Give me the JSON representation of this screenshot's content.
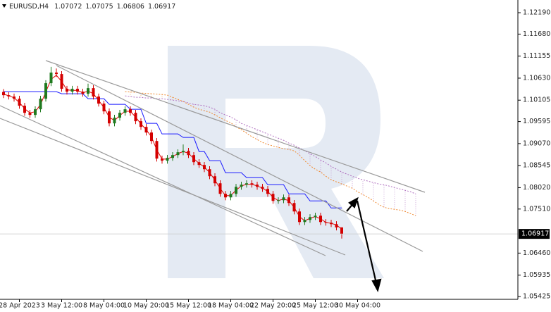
{
  "chart_data": {
    "type": "candlestick",
    "symbol": "EURUSD,H4",
    "up_color": "#1f7a1f",
    "down_color": "#d40000",
    "categories": [
      null,
      null,
      null,
      "28 Apr 2023",
      null,
      null,
      null,
      null,
      null,
      null,
      null,
      "3 May 12:00",
      null,
      null,
      null,
      null,
      null,
      null,
      null,
      "8 May 04:00",
      null,
      null,
      null,
      null,
      null,
      null,
      null,
      "10 May 20:00",
      null,
      null,
      null,
      null,
      null,
      null,
      null,
      "15 May 12:00",
      null,
      null,
      null,
      null,
      null,
      null,
      null,
      "18 May 04:00",
      null,
      null,
      null,
      null,
      null,
      null,
      null,
      "22 May 20:00",
      null,
      null,
      null,
      null,
      null,
      null,
      null,
      "25 May 12:00",
      null,
      null,
      null,
      null,
      null,
      null,
      null,
      "30 May 04:00",
      null,
      null,
      null,
      null,
      null,
      null,
      null,
      null,
      null,
      null,
      null
    ],
    "open": [
      1.103,
      1.10224,
      1.10191,
      1.1014,
      1.09972,
      1.09804,
      1.09754,
      1.09888,
      1.1014,
      1.1051,
      1.10762,
      1.10728,
      1.10376,
      1.10308,
      1.10376,
      1.10308,
      1.10258,
      1.10392,
      1.10191,
      1.10023,
      1.09838,
      1.09552,
      1.09687,
      1.09804,
      1.09888,
      1.09804,
      1.09603,
      1.09468,
      1.09334,
      1.09132,
      1.08712,
      1.08662,
      1.08729,
      1.08796,
      1.08864,
      1.08897,
      1.08796,
      1.08628,
      1.08561,
      1.0846,
      1.08292,
      1.08124,
      1.07872,
      1.07788,
      1.07872,
      1.0804,
      1.08091,
      1.08124,
      1.08091,
      1.0804,
      1.0799,
      1.07872,
      1.07704,
      1.0772,
      1.07788,
      1.07654,
      1.07452,
      1.072,
      1.07251,
      1.07318,
      1.07352,
      1.072,
      1.07184,
      1.0715,
      1.07072,
      null,
      null,
      null,
      null,
      null,
      null,
      null,
      null,
      null,
      null,
      null,
      null,
      null,
      null
    ],
    "high": [
      1.1037,
      1.10294,
      1.10261,
      1.1021,
      1.10042,
      1.09874,
      1.09958,
      1.1021,
      1.1058,
      1.109,
      1.1086,
      1.10798,
      1.10446,
      1.10446,
      1.10446,
      1.10378,
      1.105,
      1.10462,
      1.10261,
      1.10093,
      1.09908,
      1.09757,
      1.09874,
      1.09958,
      1.09958,
      1.09874,
      1.09673,
      1.09538,
      1.09404,
      1.09202,
      1.08782,
      1.08799,
      1.08866,
      1.08934,
      1.0905,
      1.08967,
      1.08866,
      1.08698,
      1.08631,
      1.0853,
      1.08362,
      1.08194,
      1.07942,
      1.07942,
      1.0811,
      1.08161,
      1.08194,
      1.08194,
      1.08161,
      1.0811,
      1.0806,
      1.07942,
      1.0779,
      1.07858,
      1.07858,
      1.07724,
      1.07522,
      1.07321,
      1.07388,
      1.07422,
      1.07422,
      1.0727,
      1.07254,
      1.0722,
      1.07075,
      null,
      null,
      null,
      null,
      null,
      null,
      null,
      null,
      null,
      null,
      null,
      null,
      null,
      null
    ],
    "low": [
      1.10154,
      1.10121,
      1.1007,
      1.09902,
      1.09734,
      1.09684,
      1.09684,
      1.09818,
      1.1007,
      1.1044,
      1.10658,
      1.10306,
      1.10238,
      1.10238,
      1.10238,
      1.10188,
      1.10188,
      1.10121,
      1.09953,
      1.09768,
      1.09482,
      1.09482,
      1.09617,
      1.09734,
      1.09734,
      1.09533,
      1.09398,
      1.09264,
      1.09062,
      1.08642,
      1.08592,
      1.08592,
      1.08659,
      1.08726,
      1.08794,
      1.08726,
      1.08558,
      1.08491,
      1.0839,
      1.08222,
      1.08054,
      1.07802,
      1.07718,
      1.07718,
      1.07802,
      1.0797,
      1.08021,
      1.08021,
      1.0797,
      1.0792,
      1.07802,
      1.07634,
      1.07634,
      1.0765,
      1.07584,
      1.07382,
      1.0713,
      1.0713,
      1.07181,
      1.07248,
      1.0713,
      1.07114,
      1.0708,
      1.07002,
      1.06806,
      null,
      null,
      null,
      null,
      null,
      null,
      null,
      null,
      null,
      null,
      null,
      null,
      null,
      null
    ],
    "close": [
      1.10224,
      1.10191,
      1.1014,
      1.09972,
      1.09804,
      1.09754,
      1.09888,
      1.1014,
      1.1051,
      1.10762,
      1.10728,
      1.10376,
      1.10308,
      1.10376,
      1.10308,
      1.10258,
      1.10392,
      1.10191,
      1.10023,
      1.09838,
      1.09552,
      1.09687,
      1.09804,
      1.09888,
      1.09804,
      1.09603,
      1.09468,
      1.09334,
      1.09132,
      1.08712,
      1.08662,
      1.08729,
      1.08796,
      1.08864,
      1.08897,
      1.08796,
      1.08628,
      1.08561,
      1.0846,
      1.08292,
      1.08124,
      1.07872,
      1.07788,
      1.07872,
      1.0804,
      1.08091,
      1.08124,
      1.08091,
      1.0804,
      1.0799,
      1.07872,
      1.07704,
      1.0772,
      1.07788,
      1.07654,
      1.07452,
      1.072,
      1.07251,
      1.07318,
      1.07352,
      1.072,
      1.07184,
      1.0715,
      1.07072,
      1.06917,
      null,
      null,
      null,
      null,
      null,
      null,
      null,
      null,
      null,
      null,
      null,
      null,
      null,
      null
    ],
    "ma_lines": [
      {
        "color": "#e00000",
        "values": [
          1.1025,
          1.1021,
          1.1016,
          1.1005,
          1.099,
          1.098,
          1.0983,
          1.1,
          1.103,
          1.106,
          1.107,
          1.1055,
          1.1035,
          1.1034,
          1.1034,
          1.1028,
          1.1032,
          1.1026,
          1.101,
          1.0993,
          1.097,
          1.0962,
          1.0974,
          1.0984,
          1.0984,
          1.097,
          1.0954,
          1.094,
          1.0923,
          1.0892,
          1.087,
          1.087,
          1.0876,
          1.0883,
          1.0888,
          1.0884,
          1.0871,
          1.086,
          1.0851,
          1.0838,
          1.082,
          1.08,
          1.0783,
          1.0783,
          1.0796,
          1.0806,
          1.081,
          1.081,
          1.0806,
          1.0801,
          1.0793,
          1.0779,
          1.0771,
          1.0775,
          1.0771,
          1.0755,
          1.0733,
          1.0723,
          1.0729,
          1.0733,
          1.0728,
          1.0719,
          1.0717,
          1.0713,
          1.0703,
          null,
          null,
          null,
          null,
          null,
          null,
          null,
          null,
          null,
          null,
          null,
          null,
          null,
          null
        ]
      },
      {
        "color": "#1a1aff",
        "values": [
          1.10308,
          1.10308,
          1.10308,
          1.10308,
          1.10308,
          1.10308,
          1.10308,
          1.10308,
          1.10308,
          1.10308,
          1.10308,
          1.10258,
          1.10258,
          1.10258,
          1.10258,
          1.10258,
          1.1014,
          1.1014,
          1.1014,
          1.1014,
          1.10006,
          1.10006,
          1.10006,
          1.10006,
          1.09888,
          1.09888,
          1.09888,
          1.09552,
          1.09552,
          1.09552,
          1.093,
          1.093,
          1.093,
          1.093,
          1.09216,
          1.09216,
          1.09216,
          1.0888,
          1.0888,
          1.08662,
          1.08662,
          1.08662,
          1.08376,
          1.08376,
          1.08376,
          1.08376,
          1.08258,
          1.08258,
          1.08258,
          1.08258,
          1.0809,
          1.0809,
          1.0809,
          1.0809,
          1.07872,
          1.07872,
          1.07872,
          1.07872,
          1.07704,
          1.07704,
          1.07704,
          1.07704,
          1.07536,
          1.07536,
          1.07536,
          null,
          null,
          null,
          null,
          null,
          null,
          null,
          null,
          null,
          null,
          null,
          null,
          null,
          null
        ]
      }
    ],
    "cloud": {
      "span_a_color": "#f08a30",
      "span_b_color": "#b070c0",
      "span_a": [
        null,
        null,
        null,
        null,
        null,
        null,
        null,
        null,
        null,
        null,
        null,
        null,
        null,
        null,
        null,
        null,
        null,
        null,
        null,
        null,
        null,
        null,
        null,
        1.10308,
        1.103,
        1.10291,
        1.10274,
        1.10266,
        1.10258,
        1.10249,
        1.10241,
        1.10224,
        1.10174,
        1.10123,
        1.10073,
        1.10006,
        1.09938,
        1.09888,
        1.09854,
        1.0982,
        1.09754,
        1.09686,
        1.0962,
        1.09569,
        1.09468,
        1.09401,
        1.09317,
        1.09233,
        1.09166,
        1.09098,
        1.09048,
        1.09014,
        1.0898,
        1.08947,
        1.0893,
        1.08897,
        1.08796,
        1.08662,
        1.08544,
        1.0846,
        1.08393,
        1.08292,
        1.08208,
        1.08158,
        1.08107,
        1.08057,
        1.08006,
        1.07922,
        1.07855,
        1.07788,
        1.07704,
        1.0762,
        1.07553,
        1.07519,
        1.07502,
        1.07486,
        1.07452,
        1.07402,
        1.07351
      ],
      "span_b": [
        null,
        null,
        null,
        null,
        null,
        null,
        null,
        null,
        null,
        null,
        null,
        null,
        null,
        null,
        null,
        null,
        null,
        null,
        null,
        null,
        null,
        null,
        null,
        1.10207,
        1.1019,
        1.10174,
        1.10174,
        1.10157,
        1.10157,
        1.1014,
        1.1014,
        1.10123,
        1.10106,
        1.1009,
        1.10073,
        1.10039,
        1.10006,
        1.09989,
        1.09972,
        1.09938,
        1.09888,
        1.09804,
        1.09754,
        1.09703,
        1.09636,
        1.09552,
        1.09502,
        1.09451,
        1.09401,
        1.0935,
        1.093,
        1.0925,
        1.09199,
        1.09149,
        1.09082,
        1.09031,
        1.08964,
        1.08897,
        1.0883,
        1.08762,
        1.08678,
        1.08611,
        1.08527,
        1.0846,
        1.08393,
        1.08342,
        1.08292,
        1.08242,
        1.08208,
        1.08174,
        1.08141,
        1.08107,
        1.0809,
        1.08057,
        1.08023,
        1.0799,
        1.07956,
        1.07922,
        1.07872
      ]
    },
    "ylim": [
      1.05358,
      1.12459
    ],
    "yticks": [
      {
        "value": 1.1219,
        "label": "1.12190"
      },
      {
        "value": 1.1168,
        "label": "1.11680"
      },
      1.11155,
      {
        "value": 1.1063,
        "label": "1.10630"
      },
      1.10105,
      1.09595,
      {
        "value": 1.0907,
        "label": "1.09070"
      },
      1.08545,
      {
        "value": 1.0802,
        "label": "1.08020"
      },
      {
        "value": 1.0751,
        "label": "1.07510"
      },
      {
        "value": 1.0646,
        "label": "1.06460"
      },
      1.05935,
      1.05425
    ]
  }
}
